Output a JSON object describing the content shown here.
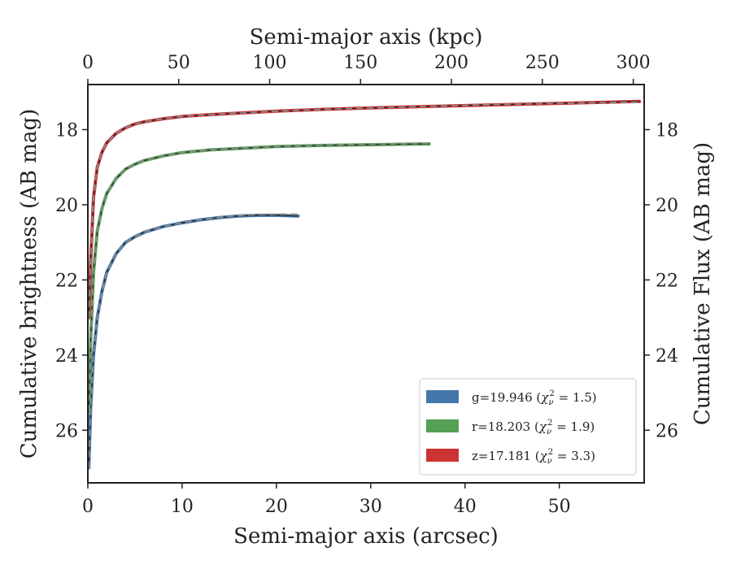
{
  "chart_data": {
    "type": "line",
    "title": "",
    "xlabel": "Semi-major axis (arcsec)",
    "xlabel_top": "Semi-major axis (kpc)",
    "ylabel": "Cumulative brightness (AB mag)",
    "ylabel_right": "Cumulative Flux (AB mag)",
    "xlim": [
      0,
      59
    ],
    "ylim": [
      27.4,
      16.8
    ],
    "y_inverted": true,
    "top_xlim": [
      0,
      306
    ],
    "x_ticks": [
      0,
      10,
      20,
      30,
      40,
      50
    ],
    "top_x_ticks": [
      0,
      50,
      100,
      150,
      200,
      250,
      300
    ],
    "y_ticks": [
      18,
      20,
      22,
      24,
      26
    ],
    "grid": false,
    "legend_position": "lower-right",
    "series": [
      {
        "name": "g=19.946",
        "chi_label": "χ",
        "chi_sub": "ν",
        "chi_sup": "2",
        "chi_value": " = 1.5)",
        "color": "#4477aa",
        "x_max": 22.3,
        "asymptote": 20.2,
        "model_x_max": 22.3,
        "x": [
          0.1,
          0.3,
          0.6,
          1,
          1.5,
          2,
          3,
          4,
          5,
          6,
          8,
          10,
          12,
          14,
          16,
          18,
          20,
          22.3
        ],
        "values": [
          27.0,
          25.4,
          24.0,
          23.0,
          22.3,
          21.8,
          21.3,
          21.0,
          20.85,
          20.73,
          20.58,
          20.48,
          20.4,
          20.34,
          20.3,
          20.28,
          20.28,
          20.3
        ]
      },
      {
        "name": "r=18.203",
        "chi_label": "χ",
        "chi_sub": "ν",
        "chi_sup": "2",
        "chi_value": " = 1.9)",
        "color": "#55a055",
        "x_max": 36.2,
        "asymptote": 18.35,
        "model_x_max": 36.2,
        "x": [
          0.1,
          0.3,
          0.6,
          1,
          1.5,
          2,
          3,
          4,
          5,
          6,
          8,
          10,
          13,
          16,
          20,
          25,
          30,
          36.2
        ],
        "values": [
          25.5,
          23.6,
          21.8,
          20.7,
          20.1,
          19.7,
          19.3,
          19.05,
          18.92,
          18.82,
          18.7,
          18.61,
          18.54,
          18.5,
          18.45,
          18.42,
          18.4,
          18.38
        ]
      },
      {
        "name": "z=17.181",
        "chi_label": "χ",
        "chi_sub": "ν",
        "chi_sup": "2",
        "chi_value": " = 3.3)",
        "color": "#cc3333",
        "x_max": 58.5,
        "asymptote": 17.3,
        "model_x_max": 58.5,
        "x": [
          0.1,
          0.3,
          0.6,
          1,
          1.5,
          2,
          3,
          4,
          5,
          6,
          8,
          10,
          13,
          16,
          20,
          25,
          30,
          35,
          40,
          45,
          50,
          55,
          58.5
        ],
        "values": [
          23.0,
          21.5,
          19.8,
          19.0,
          18.6,
          18.35,
          18.1,
          17.95,
          17.85,
          17.79,
          17.71,
          17.65,
          17.6,
          17.56,
          17.51,
          17.46,
          17.42,
          17.39,
          17.36,
          17.33,
          17.3,
          17.27,
          17.25
        ]
      }
    ]
  }
}
